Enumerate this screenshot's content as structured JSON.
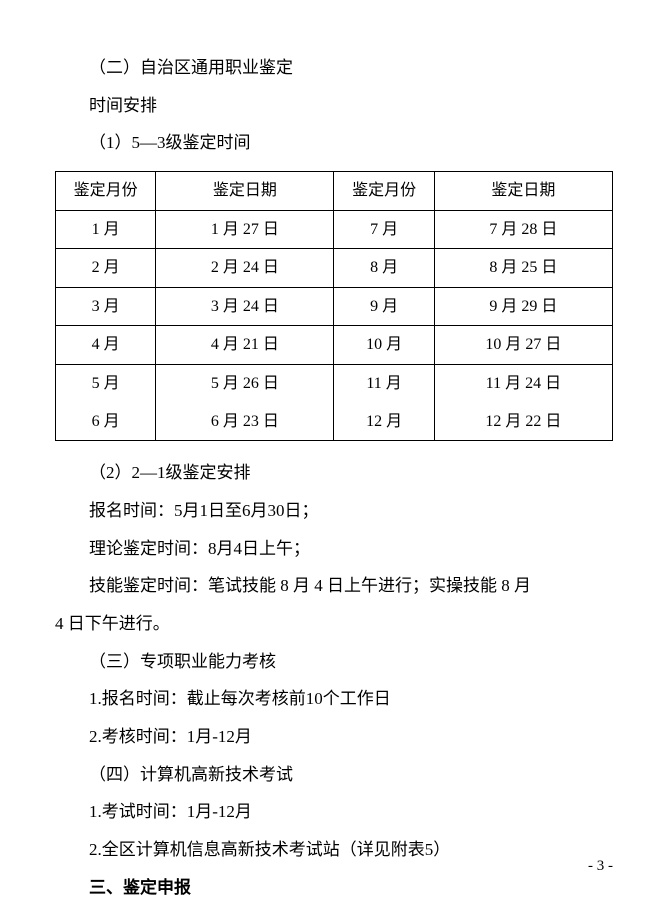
{
  "headings": {
    "h_two": "（二）自治区通用职业鉴定",
    "schedule_label": "时间安排",
    "item_1": "（1）5—3级鉴定时间",
    "item_2": "（2）2—1级鉴定安排",
    "signup_line": "报名时间：5月1日至6月30日；",
    "theory_line": "理论鉴定时间：8月4日上午；",
    "skill_line_a": "技能鉴定时间：笔试技能 8 月 4 日上午进行；实操技能 8 月",
    "skill_line_b": "4 日下午进行。",
    "h_three": "（三）专项职业能力考核",
    "three_1": "1.报名时间：截止每次考核前10个工作日",
    "three_2": "2.考核时间：1月-12月",
    "h_four": "（四）计算机高新技术考试",
    "four_1": "1.考试时间：1月-12月",
    "four_2": "2.全区计算机信息高新技术考试站（详见附表5）",
    "section_three": "三、鉴定申报"
  },
  "table": {
    "columns": [
      "鉴定月份",
      "鉴定日期",
      "鉴定月份",
      "鉴定日期"
    ],
    "rows": [
      [
        "1 月",
        "1 月 27 日",
        "7 月",
        "7 月 28 日"
      ],
      [
        "2 月",
        "2 月 24 日",
        "8 月",
        "8 月 25 日"
      ],
      [
        "3 月",
        "3 月 24 日",
        "9 月",
        "9 月 29 日"
      ],
      [
        "4 月",
        "4 月 21 日",
        "10 月",
        "10 月 27 日"
      ],
      [
        "5 月",
        "5 月 26 日",
        "11 月",
        "11 月 24 日"
      ],
      [
        "6 月",
        "6 月 23 日",
        "12 月",
        "12 月 22 日"
      ]
    ],
    "col_widths": [
      "18%",
      "32%",
      "18%",
      "32%"
    ]
  },
  "page_number": "- 3 -"
}
